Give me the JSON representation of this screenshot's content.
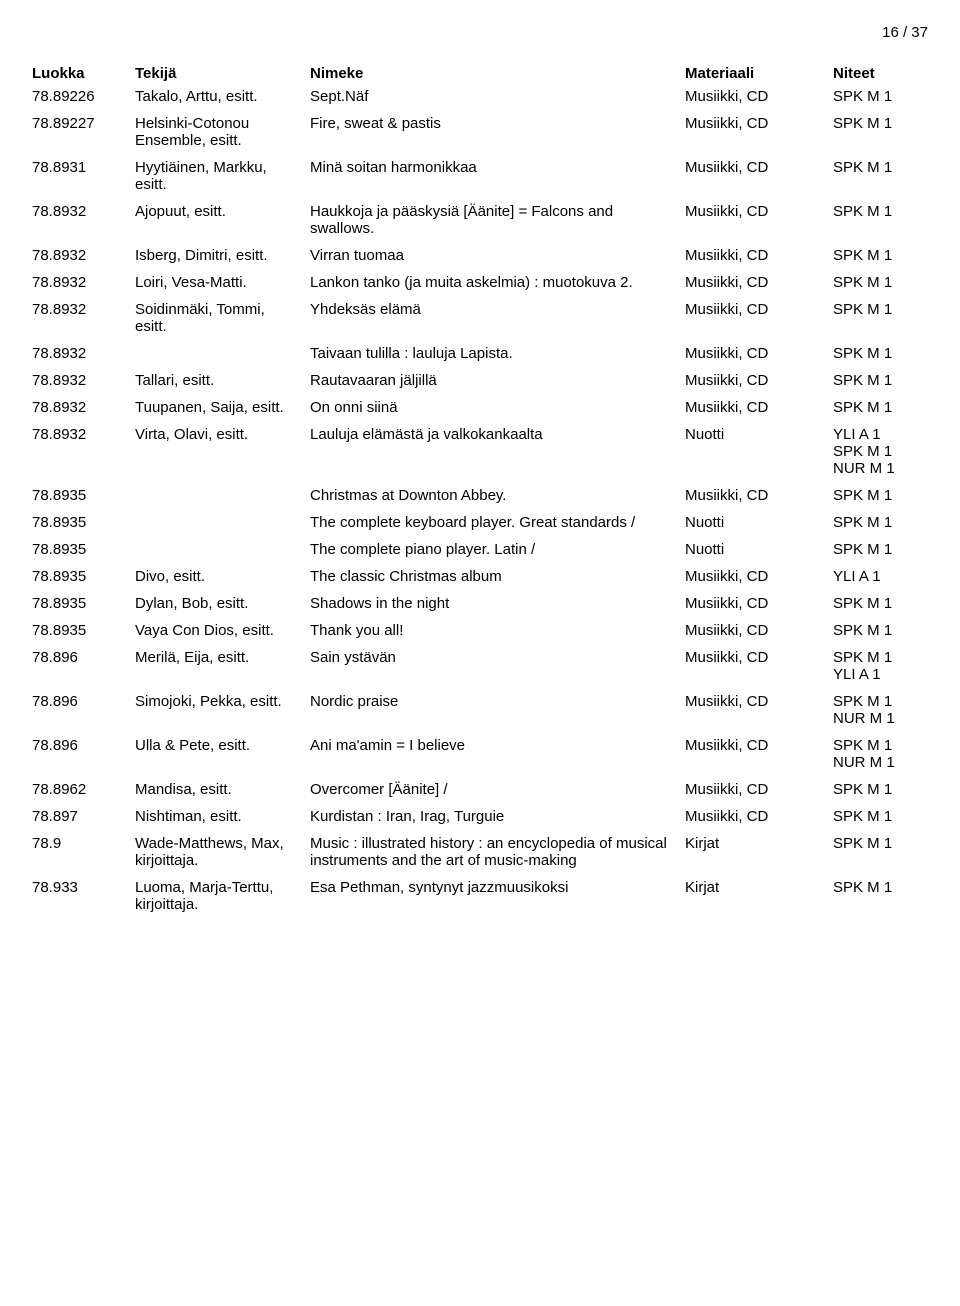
{
  "page_number": "16 / 37",
  "headers": {
    "luokka": "Luokka",
    "tekija": "Tekijä",
    "nimeke": "Nimeke",
    "materiaali": "Materiaali",
    "niteet": "Niteet"
  },
  "rows": [
    {
      "luokka": "78.89226",
      "tekija": "Takalo, Arttu, esitt.",
      "nimeke": "Sept.Näf",
      "materiaali": "Musiikki, CD",
      "niteet": [
        "SPK M 1"
      ]
    },
    {
      "luokka": "78.89227",
      "tekija": "Helsinki-Cotonou Ensemble, esitt.",
      "nimeke": "Fire, sweat & pastis",
      "materiaali": "Musiikki, CD",
      "niteet": [
        "SPK M 1"
      ]
    },
    {
      "luokka": "78.8931",
      "tekija": "Hyytiäinen, Markku, esitt.",
      "nimeke": "Minä soitan harmonikkaa",
      "materiaali": "Musiikki, CD",
      "niteet": [
        "SPK M 1"
      ]
    },
    {
      "luokka": "78.8932",
      "tekija": "Ajopuut, esitt.",
      "nimeke": "Haukkoja ja pääskysiä [Äänite] = Falcons and swallows.",
      "materiaali": "Musiikki, CD",
      "niteet": [
        "SPK M 1"
      ]
    },
    {
      "luokka": "78.8932",
      "tekija": "Isberg, Dimitri, esitt.",
      "nimeke": "Virran tuomaa",
      "materiaali": "Musiikki, CD",
      "niteet": [
        "SPK M 1"
      ]
    },
    {
      "luokka": "78.8932",
      "tekija": "Loiri, Vesa-Matti.",
      "nimeke": "Lankon tanko (ja muita askelmia) : muotokuva 2.",
      "materiaali": "Musiikki, CD",
      "niteet": [
        "SPK M 1"
      ]
    },
    {
      "luokka": "78.8932",
      "tekija": "Soidinmäki, Tommi, esitt.",
      "nimeke": "Yhdeksäs elämä",
      "materiaali": "Musiikki, CD",
      "niteet": [
        "SPK M 1"
      ]
    },
    {
      "luokka": "78.8932",
      "tekija": "",
      "nimeke": "Taivaan tulilla : lauluja Lapista.",
      "materiaali": "Musiikki, CD",
      "niteet": [
        "SPK M 1"
      ]
    },
    {
      "luokka": "78.8932",
      "tekija": "Tallari, esitt.",
      "nimeke": "Rautavaaran jäljillä",
      "materiaali": "Musiikki, CD",
      "niteet": [
        "SPK M 1"
      ]
    },
    {
      "luokka": "78.8932",
      "tekija": "Tuupanen, Saija, esitt.",
      "nimeke": "On onni siinä",
      "materiaali": "Musiikki, CD",
      "niteet": [
        "SPK M 1"
      ]
    },
    {
      "luokka": "78.8932",
      "tekija": "Virta, Olavi, esitt.",
      "nimeke": "Lauluja elämästä ja valkokankaalta",
      "materiaali": "Nuotti",
      "niteet": [
        "YLI A 1",
        "SPK M 1",
        "NUR M 1"
      ]
    },
    {
      "luokka": "78.8935",
      "tekija": "",
      "nimeke": "Christmas at Downton Abbey.",
      "materiaali": "Musiikki, CD",
      "niteet": [
        "SPK M 1"
      ]
    },
    {
      "luokka": "78.8935",
      "tekija": "",
      "nimeke": "The complete keyboard player. Great standards /",
      "materiaali": "Nuotti",
      "niteet": [
        "SPK M 1"
      ]
    },
    {
      "luokka": "78.8935",
      "tekija": "",
      "nimeke": "The complete piano player. Latin /",
      "materiaali": "Nuotti",
      "niteet": [
        "SPK M 1"
      ]
    },
    {
      "luokka": "78.8935",
      "tekija": "Divo, esitt.",
      "nimeke": "The classic Christmas album",
      "materiaali": "Musiikki, CD",
      "niteet": [
        "YLI A 1"
      ]
    },
    {
      "luokka": "78.8935",
      "tekija": "Dylan, Bob, esitt.",
      "nimeke": "Shadows in the night",
      "materiaali": "Musiikki, CD",
      "niteet": [
        "SPK M 1"
      ]
    },
    {
      "luokka": "78.8935",
      "tekija": "Vaya Con Dios, esitt.",
      "nimeke": "Thank you all!",
      "materiaali": "Musiikki, CD",
      "niteet": [
        "SPK M 1"
      ]
    },
    {
      "luokka": "78.896",
      "tekija": "Merilä, Eija, esitt.",
      "nimeke": "Sain ystävän",
      "materiaali": "Musiikki, CD",
      "niteet": [
        "SPK M 1",
        "YLI A 1"
      ]
    },
    {
      "luokka": "78.896",
      "tekija": "Simojoki, Pekka, esitt.",
      "nimeke": "Nordic praise",
      "materiaali": "Musiikki, CD",
      "niteet": [
        "SPK M 1",
        "NUR M 1"
      ]
    },
    {
      "luokka": "78.896",
      "tekija": "Ulla & Pete, esitt.",
      "nimeke": "Ani ma'amin = I believe",
      "materiaali": "Musiikki, CD",
      "niteet": [
        "SPK M 1",
        "NUR M 1"
      ]
    },
    {
      "luokka": "78.8962",
      "tekija": "Mandisa, esitt.",
      "nimeke": "Overcomer [Äänite] /",
      "materiaali": "Musiikki, CD",
      "niteet": [
        "SPK M 1"
      ]
    },
    {
      "luokka": "78.897",
      "tekija": "Nishtiman, esitt.",
      "nimeke": "Kurdistan : Iran, Irag, Turguie",
      "materiaali": "Musiikki, CD",
      "niteet": [
        "SPK M 1"
      ]
    },
    {
      "luokka": "78.9",
      "tekija": "Wade-Matthews, Max, kirjoittaja.",
      "nimeke": "Music : illustrated history : an encyclopedia of musical instruments and the art of music-making",
      "materiaali": "Kirjat",
      "niteet": [
        "SPK M 1"
      ]
    },
    {
      "luokka": "78.933",
      "tekija": "Luoma, Marja-Terttu, kirjoittaja.",
      "nimeke": "Esa Pethman, syntynyt jazzmuusikoksi",
      "materiaali": "Kirjat",
      "niteet": [
        "SPK M 1"
      ]
    }
  ]
}
